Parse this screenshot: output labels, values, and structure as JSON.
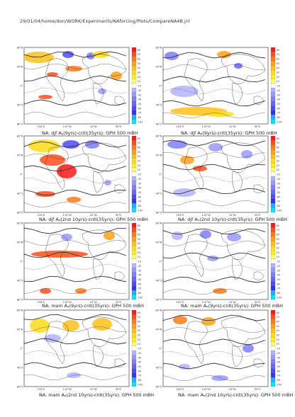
{
  "header": "29/01/04/home/don/WORK/Experiments/NAforcing/Plots/CompareNA4B.jnl",
  "lat_labels": [
    "80°N",
    "40°N",
    "0°",
    "40°S",
    "80°S"
  ],
  "lon_labels": [
    "150°E",
    "110°W",
    "10°W",
    "90°E"
  ],
  "colorbar_levels": [
    "80",
    "70",
    "60",
    "50",
    "40",
    "30",
    "20",
    "10",
    "-10",
    "-20",
    "-30",
    "-40",
    "-50",
    "-60",
    "-70",
    "-80",
    "-100"
  ],
  "colors": {
    "positive": [
      "#ff1a1a",
      "#ff4d1a",
      "#ff7a1a",
      "#ffa01a",
      "#ffc01a",
      "#ffdc1a",
      "#fff01a",
      "#ffff66"
    ],
    "negative": [
      "#ccccff",
      "#b3b3ff",
      "#9999ff",
      "#7f7fff",
      "#6666ff",
      "#4c4cff",
      "#3333ff",
      "#1ab2ff",
      "#00e5ff"
    ]
  },
  "chart_data": [
    {
      "type": "heatmap",
      "variable": "GPH 500 mB",
      "season": "djf",
      "caption": "NA: djf Aₐ(9yrs)-cntl(35yrs): GPH 500 mBH",
      "lat_range": [
        -80,
        80
      ],
      "colorbar_range": [
        -100,
        80
      ]
    },
    {
      "type": "heatmap",
      "variable": "GPH 500 mB",
      "season": "djf",
      "caption": "NA: djf Aₑ(9yrs)-cntl(35yrs): GPH 500 mBH",
      "lat_range": [
        -80,
        80
      ],
      "colorbar_range": [
        -100,
        80
      ]
    },
    {
      "type": "heatmap",
      "variable": "GPH 500 mB",
      "season": "djf",
      "caption": "NA: djf Aₐ(2nd 10yrs)-cntl(35yrs): GPH 500 mBH",
      "lat_range": [
        -80,
        80
      ],
      "colorbar_range": [
        -100,
        80
      ]
    },
    {
      "type": "heatmap",
      "variable": "GPH 500 mB",
      "season": "djf",
      "caption": "NA: djf Aₑ(2nd 10yrs)-cntl(35yrs): GPH 500 mBH",
      "lat_range": [
        -80,
        80
      ],
      "colorbar_range": [
        -100,
        80
      ]
    },
    {
      "type": "heatmap",
      "variable": "GPH 500 mB",
      "season": "mam",
      "caption": "NA: mam Aₐ(9yrs)-cntl(35yrs): GPH 500 mBH",
      "lat_range": [
        -80,
        80
      ],
      "colorbar_range": [
        -100,
        80
      ]
    },
    {
      "type": "heatmap",
      "variable": "GPH 500 mB",
      "season": "mam",
      "caption": "NA: mam Aₑ(9yrs)-cntl(35yrs): GPH 500 mBH",
      "lat_range": [
        -80,
        80
      ],
      "colorbar_range": [
        -100,
        80
      ]
    },
    {
      "type": "heatmap",
      "variable": "GPH 500 mB",
      "season": "mam",
      "caption": "NA: mam Aₐ(2nd 10yrs)-cntl(35yrs): GPH 500 mBH",
      "lat_range": [
        -80,
        80
      ],
      "colorbar_range": [
        -100,
        80
      ]
    },
    {
      "type": "heatmap",
      "variable": "GPH 500 mB",
      "season": "mam",
      "caption": "NA: mam Aₑ(2nd 10yrs)-cntl(35yrs): GPH 500 mBH",
      "lat_range": [
        -80,
        80
      ],
      "colorbar_range": [
        -100,
        80
      ]
    }
  ]
}
